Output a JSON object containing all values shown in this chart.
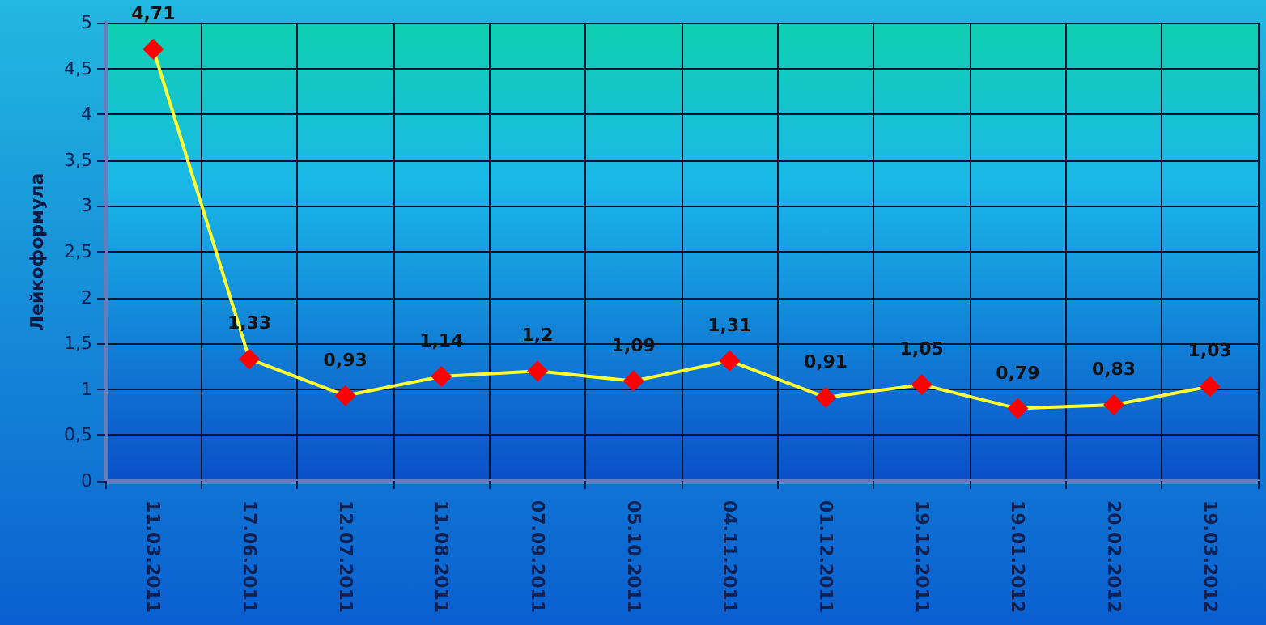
{
  "chart_data": {
    "type": "line",
    "ylabel": "Лейкоформула",
    "categories": [
      "11.03.2011",
      "17.06.2011",
      "12.07.2011",
      "11.08.2011",
      "07.09.2011",
      "05.10.2011",
      "04.11.2011",
      "01.12.2011",
      "19.12.2011",
      "19.01.2012",
      "20.02.2012",
      "19.03.2012"
    ],
    "series": [
      {
        "color": "#ffff33",
        "values": [
          4.71,
          1.33,
          0.93,
          1.14,
          1.2,
          1.09,
          1.31,
          0.91,
          1.05,
          0.79,
          0.83,
          1.03
        ],
        "value_labels": [
          "4,71",
          "1,33",
          "0,93",
          "1,14",
          "1,2",
          "1,09",
          "1,31",
          "0,91",
          "1,05",
          "0,79",
          "0,83",
          "1,03"
        ]
      }
    ],
    "ylim": [
      0,
      5
    ],
    "yticks": [
      0,
      {
        "value": 0.5,
        "label": "0,5"
      },
      1,
      {
        "value": 1.5,
        "label": "1,5"
      },
      2,
      {
        "value": 2.5,
        "label": "2,5"
      },
      3,
      {
        "value": 3.5,
        "label": "3,5"
      },
      4,
      {
        "value": 4.5,
        "label": "4,5"
      },
      5
    ],
    "grid": true,
    "marker": "diamond",
    "line_style": "solid"
  }
}
